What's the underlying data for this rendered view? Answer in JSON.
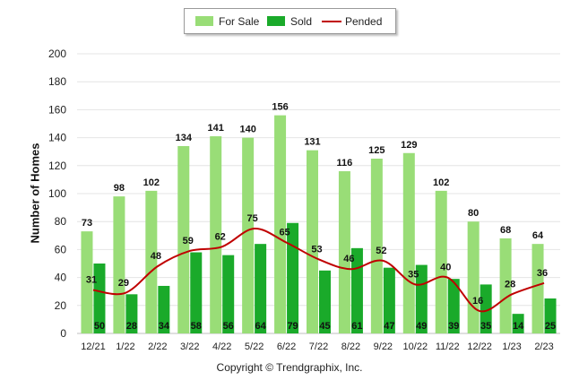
{
  "chart_data": {
    "type": "bar",
    "categories": [
      "12/21",
      "1/22",
      "2/22",
      "3/22",
      "4/22",
      "5/22",
      "6/22",
      "7/22",
      "8/22",
      "9/22",
      "10/22",
      "11/22",
      "12/22",
      "1/23",
      "2/23"
    ],
    "series": [
      {
        "name": "For Sale",
        "kind": "bar",
        "color": "#99dd77",
        "values": [
          73,
          98,
          102,
          134,
          141,
          140,
          156,
          131,
          116,
          125,
          129,
          102,
          80,
          68,
          64
        ]
      },
      {
        "name": "Sold",
        "kind": "bar",
        "color": "#1aaa2a",
        "values": [
          50,
          28,
          34,
          58,
          56,
          64,
          79,
          45,
          61,
          47,
          49,
          39,
          35,
          14,
          25
        ]
      },
      {
        "name": "Pended",
        "kind": "line",
        "color": "#c00000",
        "values": [
          31,
          29,
          48,
          59,
          62,
          75,
          65,
          53,
          46,
          52,
          35,
          40,
          16,
          28,
          36
        ]
      }
    ],
    "ylabel": "Number of Homes",
    "xlabel": "",
    "ylim": [
      0,
      200
    ],
    "yticks": [
      0,
      20,
      40,
      60,
      80,
      100,
      120,
      140,
      160,
      180,
      200
    ],
    "grid": true,
    "legend_position": "top-center"
  },
  "footer": "Copyright © Trendgraphix, Inc."
}
